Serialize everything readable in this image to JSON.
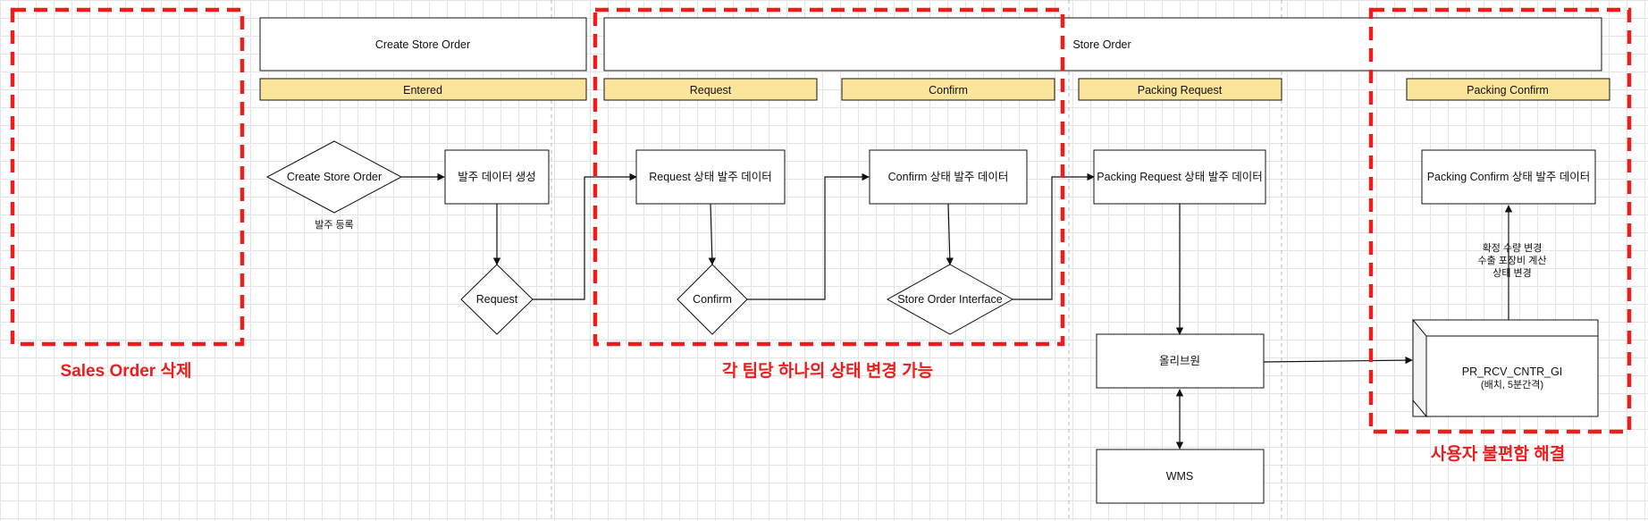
{
  "headers": {
    "create_store_order": "Create Store Order",
    "store_order": "Store Order"
  },
  "stages": {
    "entered": "Entered",
    "request": "Request",
    "confirm": "Confirm",
    "packing_request": "Packing Request",
    "packing_confirm": "Packing Confirm"
  },
  "nodes": {
    "create_store_order_decision": "Create Store Order",
    "order_register_caption": "발주 등록",
    "order_data_create": "발주 데이터 생성",
    "request_decision": "Request",
    "request_state_data": "Request 상태 발주 데이터",
    "confirm_decision": "Confirm",
    "confirm_state_data": "Confirm 상태 발주 데이터",
    "store_order_interface_decision": "Store Order Interface",
    "packing_request_state_data": "Packing Request 상태 발주 데이터",
    "olive_one": "올리브원",
    "wms": "WMS",
    "packing_confirm_state_data": "Packing Confirm 상태 발주 데이터",
    "batch_proc_line1": "PR_RCV_CNTR_GI",
    "batch_proc_line2": "(배치, 5분간격)"
  },
  "annotations": {
    "confirm_effect_line1": "확정 수량 변경",
    "confirm_effect_line2": "수출 포장비 계산",
    "confirm_effect_line3": "상태 변경"
  },
  "callouts": {
    "sales_order_delete": "Sales Order 삭제",
    "one_state_change_per_team": "각 팀당 하나의 상태 변경 가능",
    "user_inconvenience_resolved": "사용자 불편함 해결"
  },
  "colors": {
    "stage_fill": "#fbe59a",
    "callout_red": "#ee1c1c"
  }
}
